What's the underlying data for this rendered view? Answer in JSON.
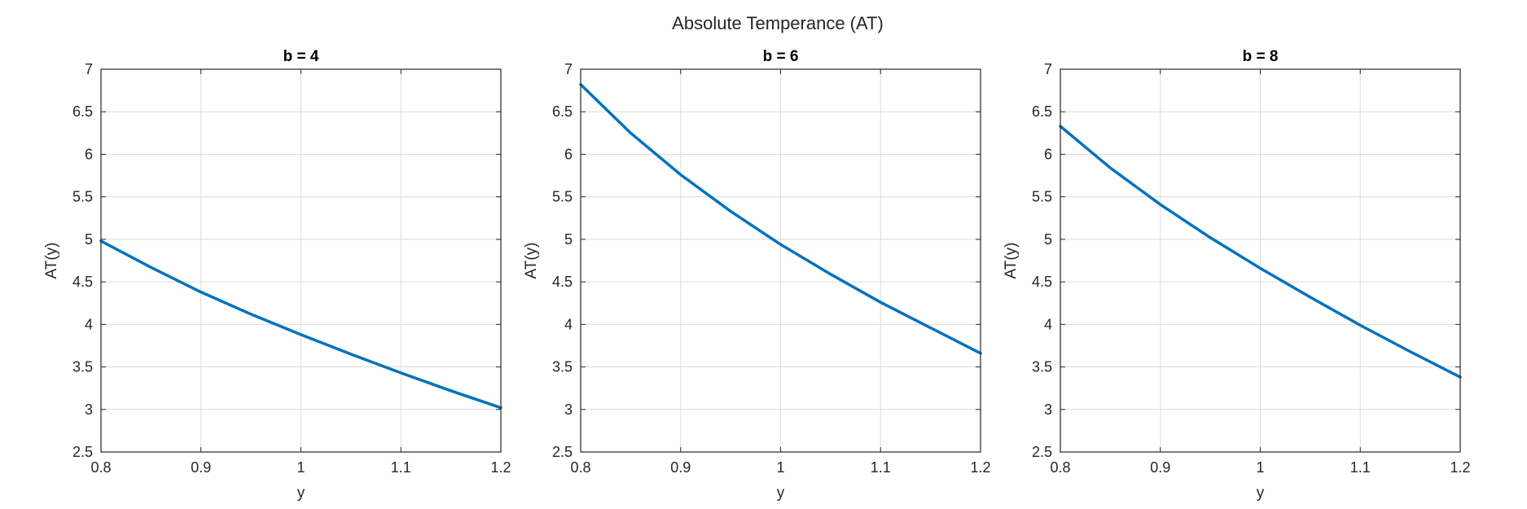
{
  "figure": {
    "title": "Absolute Temperance (AT)"
  },
  "colors": {
    "line": "#0072BD",
    "grid": "#dcdcdc",
    "axes": "#262626",
    "background": "#ffffff"
  },
  "chart_data": [
    {
      "type": "line",
      "title": "b = 4",
      "xlabel": "y",
      "ylabel": "AT(y)",
      "xlim": [
        0.8,
        1.2
      ],
      "ylim": [
        2.5,
        7
      ],
      "xticks": [
        "0.8",
        "0.9",
        "1",
        "1.1",
        "1.2"
      ],
      "yticks": [
        "2.5",
        "3",
        "3.5",
        "4",
        "4.5",
        "5",
        "5.5",
        "6",
        "6.5",
        "7"
      ],
      "grid": true,
      "series": [
        {
          "x": [
            0.8,
            0.85,
            0.9,
            0.95,
            1.0,
            1.05,
            1.1,
            1.15,
            1.2
          ],
          "y": [
            4.98,
            4.67,
            4.38,
            4.12,
            3.88,
            3.65,
            3.43,
            3.22,
            3.02
          ]
        }
      ]
    },
    {
      "type": "line",
      "title": "b = 6",
      "xlabel": "y",
      "ylabel": "AT(y)",
      "xlim": [
        0.8,
        1.2
      ],
      "ylim": [
        2.5,
        7
      ],
      "xticks": [
        "0.8",
        "0.9",
        "1",
        "1.1",
        "1.2"
      ],
      "yticks": [
        "2.5",
        "3",
        "3.5",
        "4",
        "4.5",
        "5",
        "5.5",
        "6",
        "6.5",
        "7"
      ],
      "grid": true,
      "series": [
        {
          "x": [
            0.8,
            0.85,
            0.9,
            0.95,
            1.0,
            1.05,
            1.1,
            1.15,
            1.2
          ],
          "y": [
            6.82,
            6.25,
            5.76,
            5.33,
            4.94,
            4.59,
            4.26,
            3.96,
            3.66
          ]
        }
      ]
    },
    {
      "type": "line",
      "title": "b = 8",
      "xlabel": "y",
      "ylabel": "AT(y)",
      "xlim": [
        0.8,
        1.2
      ],
      "ylim": [
        2.5,
        7
      ],
      "xticks": [
        "0.8",
        "0.9",
        "1",
        "1.1",
        "1.2"
      ],
      "yticks": [
        "2.5",
        "3",
        "3.5",
        "4",
        "4.5",
        "5",
        "5.5",
        "6",
        "6.5",
        "7"
      ],
      "grid": true,
      "series": [
        {
          "x": [
            0.8,
            0.85,
            0.9,
            0.95,
            1.0,
            1.05,
            1.1,
            1.15,
            1.2
          ],
          "y": [
            6.33,
            5.84,
            5.41,
            5.02,
            4.66,
            4.32,
            3.99,
            3.68,
            3.38
          ]
        }
      ]
    }
  ]
}
